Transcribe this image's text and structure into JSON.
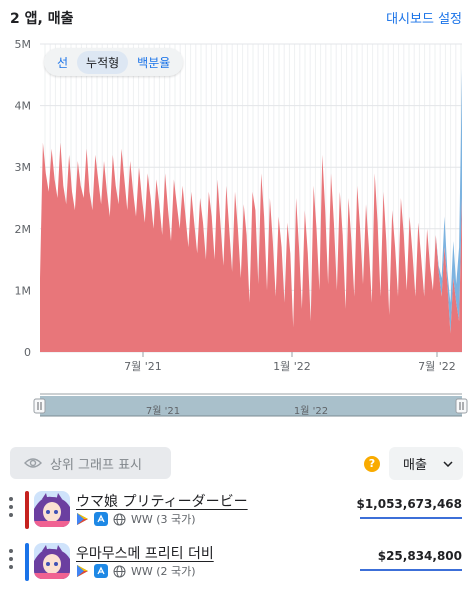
{
  "header": {
    "title": "2 앱, 매출",
    "dashboard_settings": "대시보드 설정"
  },
  "mode_toggle": {
    "options": [
      "선",
      "누적형",
      "백분율"
    ],
    "selected": "누적형"
  },
  "chart_data": {
    "type": "area",
    "stacked": true,
    "y_ticks": [
      "0",
      "1M",
      "2M",
      "3M",
      "4M",
      "5M"
    ],
    "ylim": [
      0,
      5000000
    ],
    "x_ticks": [
      "7월 '21",
      "1월 '22",
      "7월 '22"
    ],
    "x_range": [
      "2020-11",
      "2022-08"
    ],
    "series": [
      {
        "color": "#e8767a",
        "values": [
          1.2,
          3.4,
          2.9,
          2.6,
          3.3,
          2.8,
          2.5,
          3.4,
          2.7,
          2.4,
          3.2,
          2.6,
          2.3,
          3.1,
          2.7,
          2.5,
          3.3,
          2.6,
          2.3,
          3.2,
          2.8,
          2.4,
          3.1,
          2.6,
          2.2,
          3.2,
          2.7,
          2.4,
          3.3,
          2.8,
          2.3,
          3.1,
          2.6,
          2.2,
          3.0,
          2.5,
          2.1,
          2.9,
          2.5,
          2.0,
          2.8,
          2.4,
          1.9,
          2.9,
          2.3,
          1.8,
          2.8,
          2.4,
          2.0,
          2.7,
          2.2,
          1.7,
          2.6,
          2.1,
          1.6,
          2.5,
          2.1,
          1.5,
          2.6,
          2.2,
          1.5,
          2.8,
          2.1,
          1.4,
          2.7,
          2.0,
          1.3,
          2.6,
          2.0,
          1.2,
          2.4,
          1.9,
          0.8,
          2.6,
          2.3,
          1.1,
          2.9,
          2.2,
          1.0,
          2.5,
          1.8,
          0.9,
          2.2,
          1.7,
          0.8,
          2.1,
          1.6,
          0.4,
          2.5,
          1.7,
          0.7,
          2.3,
          1.6,
          0.5,
          2.7,
          2.0,
          1.0,
          3.2,
          2.3,
          1.1,
          2.9,
          2.1,
          1.0,
          2.6,
          1.9,
          0.7,
          2.5,
          1.8,
          0.9,
          2.7,
          2.0,
          1.1,
          2.4,
          1.7,
          0.8,
          2.9,
          2.1,
          0.9,
          2.6,
          1.8,
          0.6,
          2.3,
          1.7,
          0.9,
          2.5,
          1.9,
          1.0,
          2.2,
          1.6,
          0.9,
          2.1,
          1.5,
          0.9,
          2.0,
          1.4,
          1.0,
          1.9,
          1.3,
          0.9,
          1.7,
          1.1,
          0.3,
          1.2,
          0.8,
          0.5,
          2.5
        ],
        "values_unit": "M"
      },
      {
        "color": "#7cb3e0",
        "values": [
          0,
          0,
          0,
          0,
          0,
          0,
          0,
          0,
          0,
          0,
          0,
          0,
          0,
          0,
          0,
          0,
          0,
          0,
          0,
          0,
          0,
          0,
          0,
          0,
          0,
          0,
          0,
          0,
          0,
          0,
          0,
          0,
          0,
          0,
          0,
          0,
          0,
          0,
          0,
          0,
          0,
          0,
          0,
          0,
          0,
          0,
          0,
          0,
          0,
          0,
          0,
          0,
          0,
          0,
          0,
          0,
          0,
          0,
          0,
          0,
          0,
          0,
          0,
          0,
          0,
          0,
          0,
          0,
          0,
          0,
          0,
          0,
          0,
          0,
          0,
          0,
          0,
          0,
          0,
          0,
          0,
          0,
          0,
          0,
          0,
          0,
          0,
          0,
          0,
          0,
          0,
          0,
          0,
          0,
          0,
          0,
          0,
          0,
          0,
          0,
          0,
          0,
          0,
          0,
          0,
          0,
          0,
          0,
          0,
          0,
          0,
          0,
          0,
          0,
          0,
          0,
          0,
          0,
          0,
          0,
          0,
          0,
          0,
          0,
          0,
          0,
          0,
          0,
          0,
          0,
          0,
          0,
          0,
          0,
          0,
          0,
          0,
          0.1,
          0.3,
          0.5,
          0.2,
          0.5,
          0.6,
          0.3,
          1.2,
          2.1
        ],
        "values_unit": "M"
      }
    ]
  },
  "navigator": {
    "labels": [
      "7월 '21",
      "1월 '22"
    ]
  },
  "controls": {
    "top_graph_label": "상위 그래프 표시",
    "metric_label": "매출",
    "help": "?"
  },
  "apps": [
    {
      "name": "ウマ娘 プリティーダービー",
      "region": "WW (3 국가)",
      "revenue": "$1,053,673,468",
      "color": "#c5221f",
      "bar_fraction": 1.0
    },
    {
      "name": "우마무스메 프리티 더비",
      "region": "WW (2 국가)",
      "revenue": "$25,834,800",
      "color": "#1a73e8",
      "bar_fraction": 1.0
    }
  ]
}
